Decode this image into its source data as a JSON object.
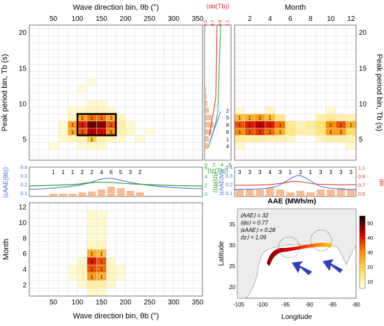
{
  "colors": {
    "red_axis": "#d62728",
    "blue_line": "#4169e1",
    "green_line": "#2ca02c",
    "orange_bar": "#f4b183",
    "box": "#000000",
    "map_land": "#e9e9e9",
    "arrow": "#2f3fc0"
  },
  "chart_data": [
    {
      "type": "heatmap",
      "xlabel": "Wave direction bin, θb (°)",
      "ylabel": "Peak period bin, Tb (s)",
      "x_ticks": [
        50,
        100,
        150,
        200,
        250,
        300,
        350
      ],
      "y_ticks": [
        5,
        10,
        15,
        20
      ],
      "xlim": [
        0,
        360
      ],
      "ylim": [
        2,
        21
      ],
      "x_bin_width": 20,
      "y_bin_width": 1,
      "cells": [
        {
          "x": 90,
          "y": 6,
          "v": 1
        },
        {
          "x": 110,
          "y": 6,
          "v": 1
        },
        {
          "x": 130,
          "y": 6,
          "v": 1
        },
        {
          "x": 150,
          "y": 6,
          "v": 1
        },
        {
          "x": 170,
          "y": 6,
          "v": 1
        },
        {
          "x": 90,
          "y": 7,
          "v": 1
        },
        {
          "x": 110,
          "y": 7,
          "v": 1
        },
        {
          "x": 130,
          "y": 7,
          "v": 1
        },
        {
          "x": 150,
          "y": 7,
          "v": 1
        },
        {
          "x": 170,
          "y": 7,
          "v": 1
        },
        {
          "x": 110,
          "y": 8,
          "v": 1
        },
        {
          "x": 130,
          "y": 8,
          "v": 1
        },
        {
          "x": 150,
          "y": 8,
          "v": 1
        },
        {
          "x": 170,
          "y": 8,
          "v": 1
        },
        {
          "x": 130,
          "y": 5,
          "v": 1
        }
      ],
      "highlight": {
        "x_range": [
          100,
          180
        ],
        "y_range": [
          5.5,
          8.5
        ]
      }
    },
    {
      "type": "line",
      "title": "",
      "series": [
        {
          "name": "⟨dα(Tb)⟩"
        },
        {
          "name": "⟨tz(Tb)⟩"
        }
      ],
      "x_top_ticks": [
        "0.5",
        "0.7",
        "0.9",
        "1.1"
      ],
      "x_bottom_ticks": [
        "0",
        "2",
        "4",
        "6"
      ],
      "bar_labels": [
        {
          "y": 4,
          "label": "4"
        },
        {
          "y": 5,
          "label": "1"
        },
        {
          "y": 6,
          "label": "8"
        },
        {
          "y": 7,
          "label": "8"
        },
        {
          "y": 8,
          "label": "5"
        },
        {
          "y": 9,
          "label": "2"
        }
      ]
    },
    {
      "type": "heatmap",
      "xlabel": "",
      "top_label": "Month",
      "ylabel": "Peak period bin, Tb (s)",
      "x_ticks": [
        2,
        4,
        6,
        8,
        10,
        12
      ],
      "y_ticks": [
        5,
        10,
        15,
        20
      ],
      "xlim": [
        0.5,
        12.5
      ],
      "ylim": [
        2,
        21
      ],
      "cells": [
        {
          "x": 1,
          "y": 6,
          "v": 1
        },
        {
          "x": 2,
          "y": 6,
          "v": 1
        },
        {
          "x": 3,
          "y": 6,
          "v": 1
        },
        {
          "x": 4,
          "y": 6,
          "v": 1
        },
        {
          "x": 5,
          "y": 6,
          "v": 1
        },
        {
          "x": 10,
          "y": 6,
          "v": 1
        },
        {
          "x": 11,
          "y": 6,
          "v": 1
        },
        {
          "x": 1,
          "y": 7,
          "v": 1
        },
        {
          "x": 2,
          "y": 7,
          "v": 1
        },
        {
          "x": 3,
          "y": 7,
          "v": 1
        },
        {
          "x": 4,
          "y": 7,
          "v": 1
        },
        {
          "x": 5,
          "y": 7,
          "v": 1
        },
        {
          "x": 10,
          "y": 7,
          "v": 1
        },
        {
          "x": 11,
          "y": 7,
          "v": 1
        },
        {
          "x": 12,
          "y": 7,
          "v": 1
        },
        {
          "x": 1,
          "y": 8,
          "v": 1
        },
        {
          "x": 2,
          "y": 8,
          "v": 1
        },
        {
          "x": 3,
          "y": 8,
          "v": 1
        },
        {
          "x": 4,
          "y": 8,
          "v": 1
        }
      ]
    },
    {
      "type": "bar",
      "ylabel_left": "⟨εAAE(θb)⟩",
      "ylabel_right": "⟨tz(θb)⟩",
      "y_left_ticks": [
        "0.1",
        "0.2",
        "0.3",
        "0.4"
      ],
      "y_right_ticks": [
        "0",
        "2",
        "4",
        "6"
      ],
      "bar_labels": [
        "1",
        "1",
        "1",
        "2",
        "2",
        "4",
        "6",
        "5",
        "3",
        "2"
      ],
      "bar_x": [
        50,
        70,
        90,
        110,
        130,
        150,
        170,
        190,
        210,
        230
      ]
    },
    {
      "type": "bar",
      "ylabel_left": "⟨εAAE(M)⟩",
      "ylabel_right": "dα",
      "y_left_ticks": [
        "0.1",
        "0.2",
        "0.3",
        "0.4"
      ],
      "y_right_ticks": [
        "0.5",
        "0.7",
        "0.9",
        "1.1"
      ],
      "bar_labels": [
        "3",
        "3",
        "3",
        "4",
        "3",
        "1",
        "3",
        "1",
        "3",
        "3",
        "3",
        "3"
      ]
    },
    {
      "type": "heatmap",
      "xlabel": "Wave direction bin, θb (°)",
      "ylabel": "Month",
      "x_ticks": [
        50,
        100,
        150,
        200,
        250,
        300,
        350
      ],
      "y_ticks": [
        2,
        4,
        6,
        8,
        10,
        12
      ],
      "xlim": [
        0,
        360
      ],
      "ylim": [
        0.5,
        12.5
      ],
      "cells": [
        {
          "x": 130,
          "y": 3,
          "v": 1
        },
        {
          "x": 150,
          "y": 3,
          "v": 1
        },
        {
          "x": 130,
          "y": 4,
          "v": 1
        },
        {
          "x": 150,
          "y": 4,
          "v": 1
        },
        {
          "x": 130,
          "y": 5,
          "v": 1
        },
        {
          "x": 150,
          "y": 5,
          "v": 1
        },
        {
          "x": 130,
          "y": 6,
          "v": 1
        },
        {
          "x": 150,
          "y": 6,
          "v": 1
        }
      ]
    },
    {
      "type": "map",
      "title": "AAE (MWh/m)",
      "xlabel": "Longitude",
      "ylabel": "Latitude",
      "x_ticks": [
        "-105",
        "-100",
        "-95",
        "-90",
        "-85",
        "-80"
      ],
      "y_ticks": [
        "20",
        "25",
        "30",
        "35"
      ],
      "colorbar_ticks": [
        "10",
        "20",
        "30",
        "40",
        "50"
      ],
      "stats": [
        "⟨AAE⟩ = 32",
        "⟨dα⟩ = 0.77",
        "⟨εAAE⟩ = 0.28",
        "⟨tz⟩ = 1.09"
      ]
    }
  ]
}
